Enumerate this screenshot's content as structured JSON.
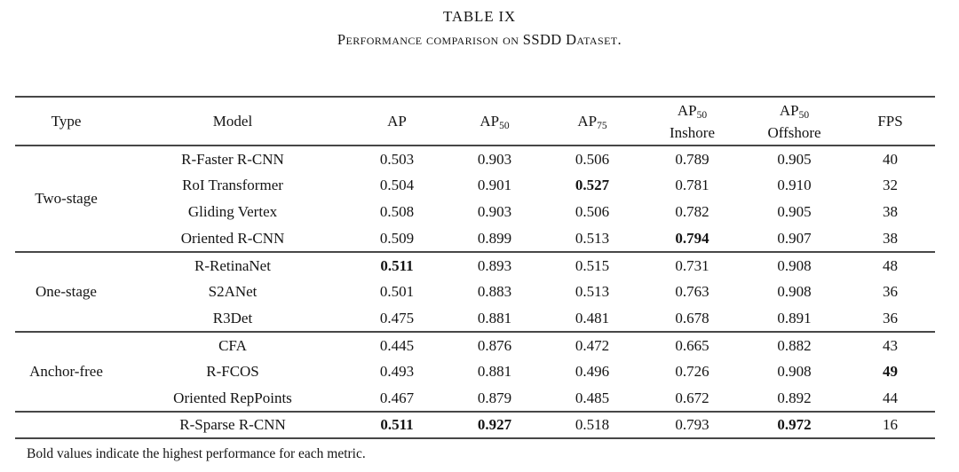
{
  "page": {
    "title": "TABLE IX",
    "subtitle": "Performance comparison on SSDD Dataset.",
    "footnote": "Bold values indicate the highest performance for each metric."
  },
  "table": {
    "headers": {
      "type": "Type",
      "model": "Model",
      "ap": "AP",
      "ap50": {
        "base": "AP",
        "sub": "50"
      },
      "ap75": {
        "base": "AP",
        "sub": "75"
      },
      "ap50_inshore": {
        "base": "AP",
        "sub": "50",
        "line2": "Inshore"
      },
      "ap50_offshore": {
        "base": "AP",
        "sub": "50",
        "line2": "Offshore"
      },
      "fps": "FPS"
    },
    "groups": [
      {
        "label": "Two-stage",
        "rows": [
          {
            "model": "R-Faster R-CNN",
            "values": [
              "0.503",
              "0.903",
              "0.506",
              "0.789",
              "0.905",
              "40"
            ],
            "bold": []
          },
          {
            "model": "RoI Transformer",
            "values": [
              "0.504",
              "0.901",
              "0.527",
              "0.781",
              "0.910",
              "32"
            ],
            "bold": [
              2
            ]
          },
          {
            "model": "Gliding Vertex",
            "values": [
              "0.508",
              "0.903",
              "0.506",
              "0.782",
              "0.905",
              "38"
            ],
            "bold": []
          },
          {
            "model": "Oriented R-CNN",
            "values": [
              "0.509",
              "0.899",
              "0.513",
              "0.794",
              "0.907",
              "38"
            ],
            "bold": [
              3
            ]
          }
        ]
      },
      {
        "label": "One-stage",
        "rows": [
          {
            "model": "R-RetinaNet",
            "values": [
              "0.511",
              "0.893",
              "0.515",
              "0.731",
              "0.908",
              "48"
            ],
            "bold": [
              0
            ]
          },
          {
            "model": "S2ANet",
            "values": [
              "0.501",
              "0.883",
              "0.513",
              "0.763",
              "0.908",
              "36"
            ],
            "bold": []
          },
          {
            "model": "R3Det",
            "values": [
              "0.475",
              "0.881",
              "0.481",
              "0.678",
              "0.891",
              "36"
            ],
            "bold": []
          }
        ]
      },
      {
        "label": "Anchor-free",
        "rows": [
          {
            "model": "CFA",
            "values": [
              "0.445",
              "0.876",
              "0.472",
              "0.665",
              "0.882",
              "43"
            ],
            "bold": []
          },
          {
            "model": "R-FCOS",
            "values": [
              "0.493",
              "0.881",
              "0.496",
              "0.726",
              "0.908",
              "49"
            ],
            "bold": [
              5
            ]
          },
          {
            "model": "Oriented RepPoints",
            "values": [
              "0.467",
              "0.879",
              "0.485",
              "0.672",
              "0.892",
              "44"
            ],
            "bold": []
          }
        ]
      },
      {
        "label": "",
        "rows": [
          {
            "model": "R-Sparse R-CNN",
            "values": [
              "0.511",
              "0.927",
              "0.518",
              "0.793",
              "0.972",
              "16"
            ],
            "bold": [
              0,
              1,
              4
            ]
          }
        ]
      }
    ]
  }
}
